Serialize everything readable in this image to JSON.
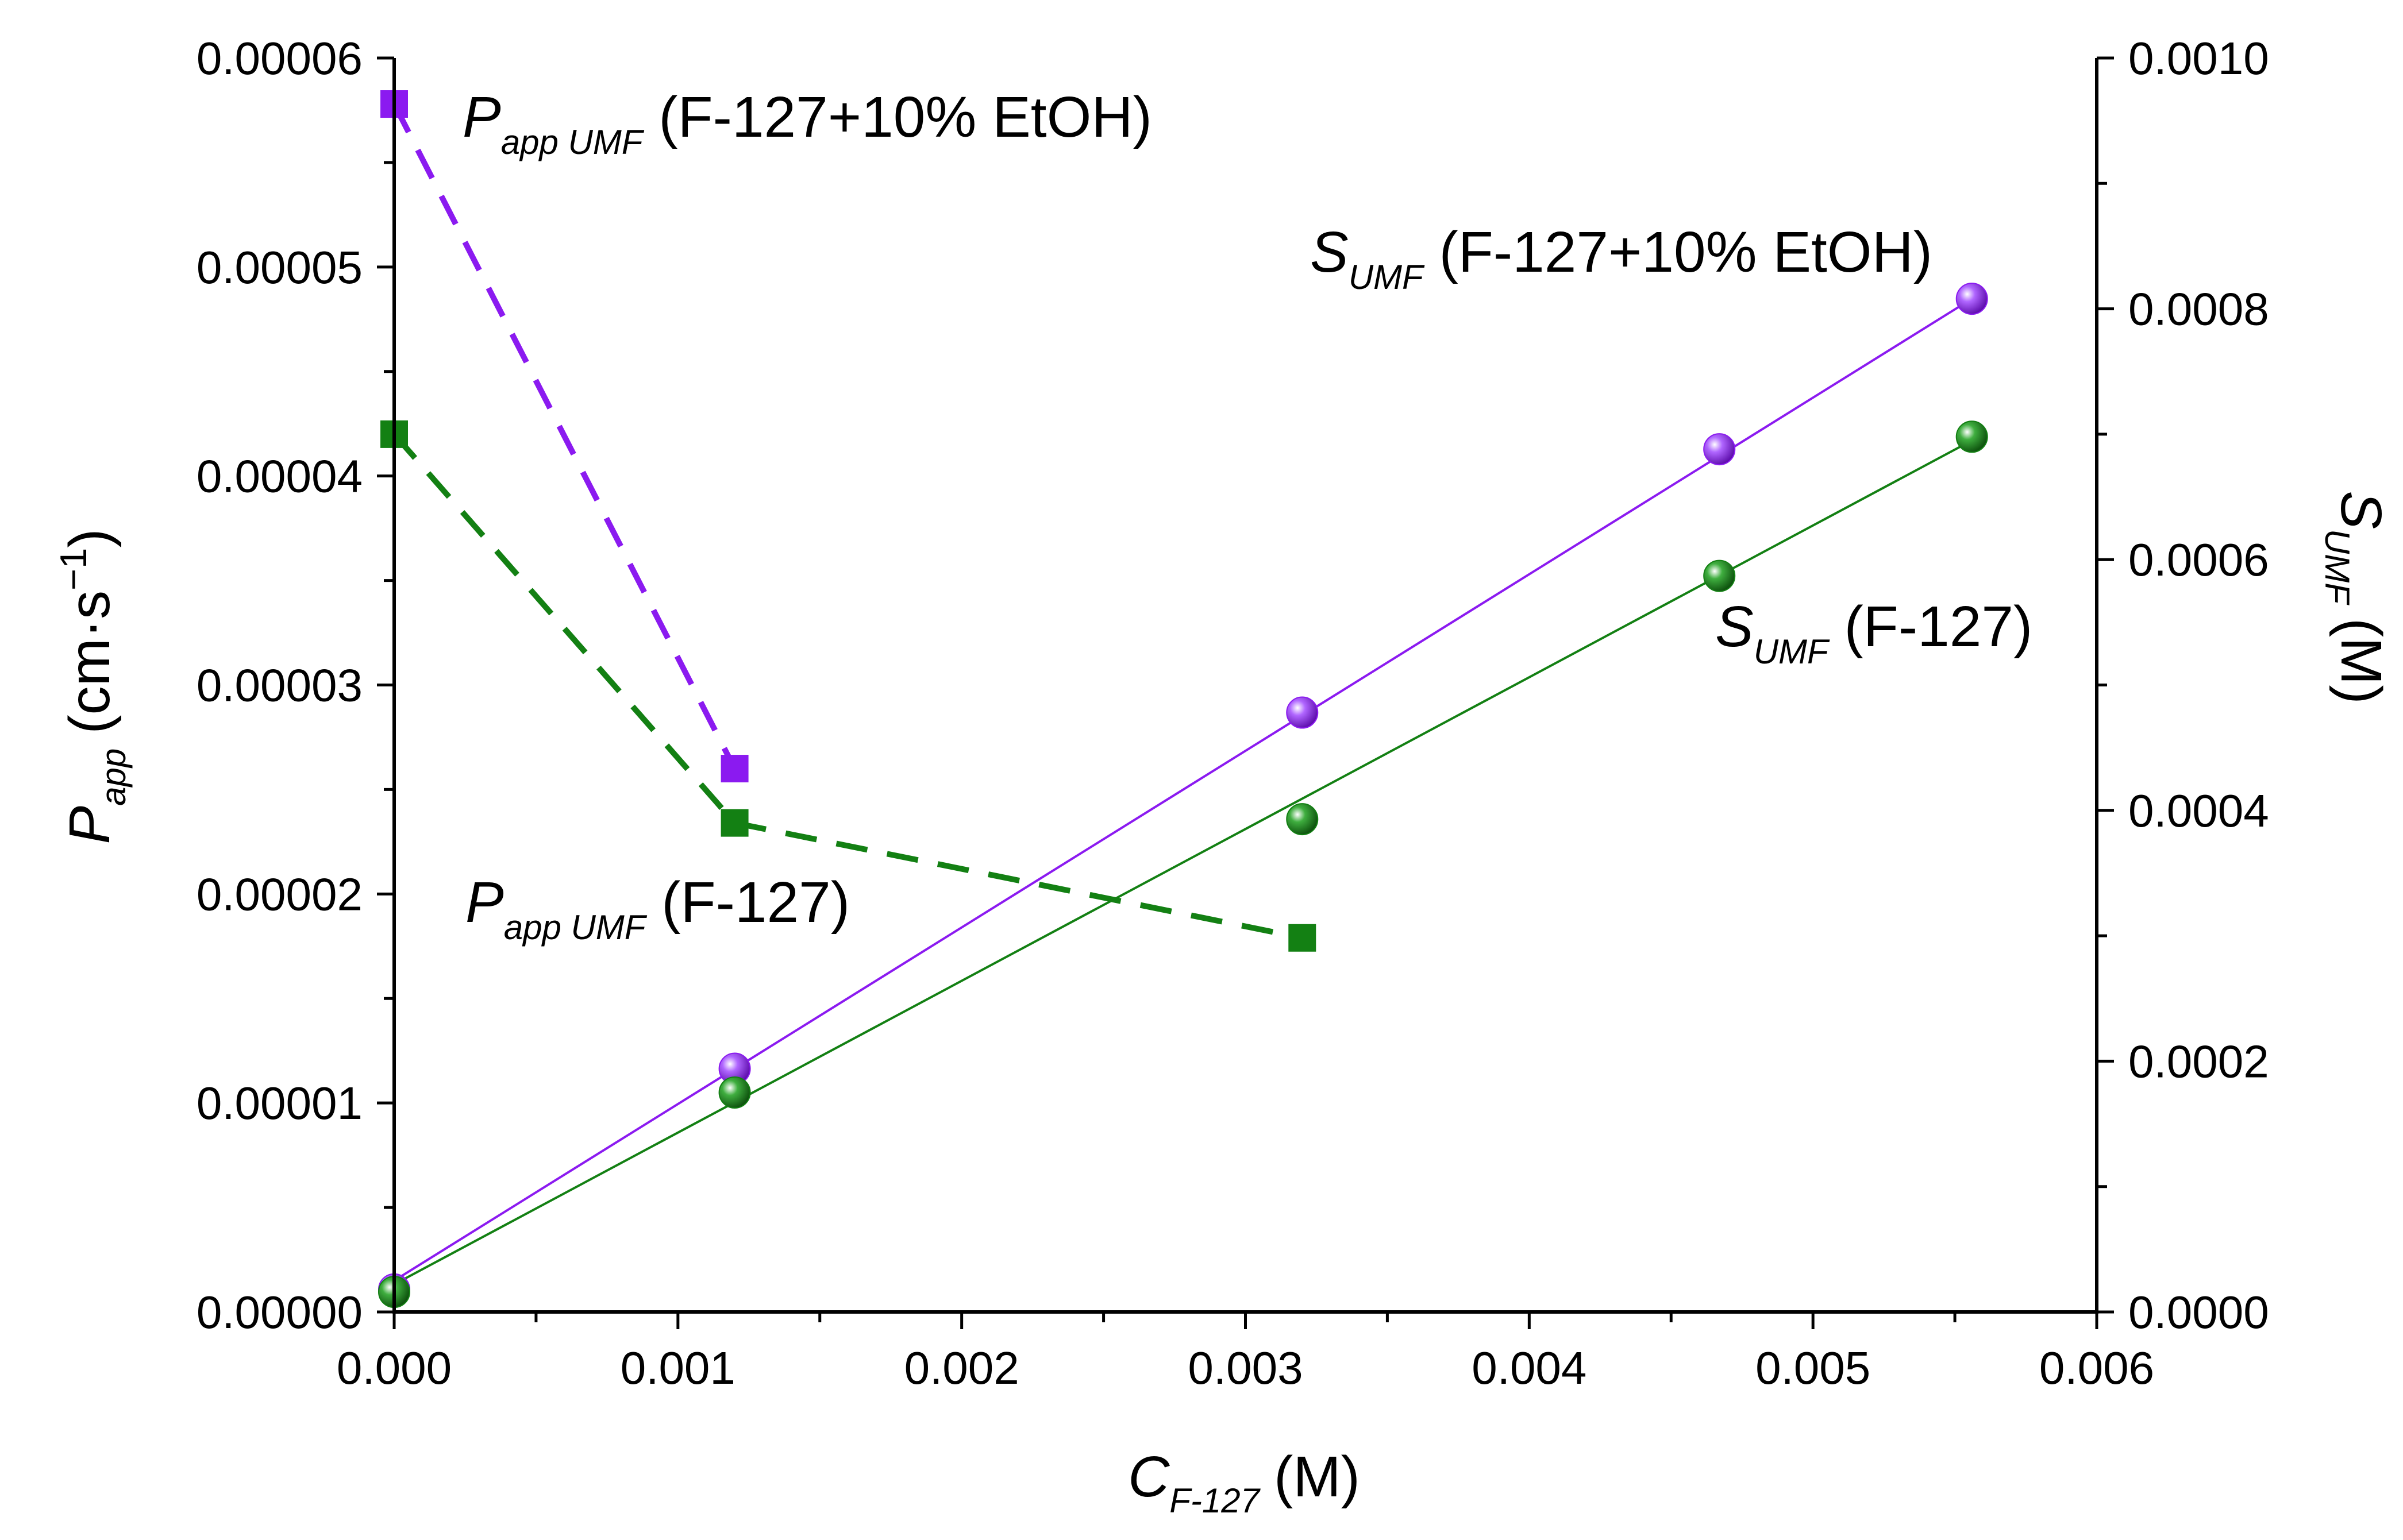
{
  "chart_data": {
    "type": "scatter",
    "x_axis": {
      "label_main": "C",
      "label_sub": "F-127",
      "label_unit": "(M)",
      "range": [
        0,
        0.006
      ],
      "ticks": [
        0.0,
        0.001,
        0.002,
        0.003,
        0.004,
        0.005,
        0.006
      ],
      "tick_labels": [
        "0.000",
        "0.001",
        "0.002",
        "0.003",
        "0.004",
        "0.005",
        "0.006"
      ]
    },
    "y_left": {
      "label_main": "P",
      "label_sub": "app",
      "label_unit_pre": "(cm·s",
      "label_unit_sup": "−1",
      "label_unit_post": ")",
      "range": [
        0,
        6e-05
      ],
      "ticks": [
        0,
        1e-05,
        2e-05,
        3e-05,
        4e-05,
        5e-05,
        6e-05
      ],
      "tick_labels": [
        "0.00000",
        "0.00001",
        "0.00002",
        "0.00003",
        "0.00004",
        "0.00005",
        "0.00006"
      ]
    },
    "y_right": {
      "label_main": "S",
      "label_sub": "UMF",
      "label_unit": "(M)",
      "range": [
        0,
        0.001
      ],
      "ticks": [
        0,
        0.0002,
        0.0004,
        0.0006,
        0.0008,
        0.001
      ],
      "tick_labels": [
        "0.0000",
        "0.0002",
        "0.0004",
        "0.0006",
        "0.0008",
        "0.0010"
      ]
    },
    "series": [
      {
        "name": "P_app UMF (F-127+10% EtOH)",
        "axis": "left",
        "marker": "square",
        "line": "dashed",
        "color": "#8B1AF0",
        "x": [
          0.0,
          0.0012
        ],
        "y": [
          5.78e-05,
          2.6e-05
        ]
      },
      {
        "name": "P_app UMF (F-127)",
        "axis": "left",
        "marker": "square",
        "line": "dashed",
        "color": "#138013",
        "x": [
          0.0,
          0.0012,
          0.0032
        ],
        "y": [
          4.2e-05,
          2.34e-05,
          1.79e-05
        ]
      },
      {
        "name": "S_UMF (F-127+10% EtOH)",
        "axis": "right",
        "marker": "sphere",
        "line": "linear-fit",
        "color": "#8B1AF0",
        "x": [
          0.0,
          0.0012,
          0.0032,
          0.00467,
          0.00556
        ],
        "y": [
          1.8e-05,
          0.000194,
          0.000478,
          0.000688,
          0.000808
        ],
        "fit": [
          [
            0.0,
            2.5e-05
          ],
          [
            0.00556,
            0.000808
          ]
        ]
      },
      {
        "name": "S_UMF (F-127)",
        "axis": "right",
        "marker": "sphere",
        "line": "linear-fit",
        "color": "#138013",
        "x": [
          0.0,
          0.0012,
          0.0032,
          0.00467,
          0.00556
        ],
        "y": [
          1.6e-05,
          0.000175,
          0.000393,
          0.000587,
          0.000698
        ],
        "fit": [
          [
            0.0,
            2.2e-05
          ],
          [
            0.00556,
            0.000695
          ]
        ]
      }
    ],
    "annotations": [
      {
        "main": "P",
        "sub": "app UMF",
        "rest": " (F-127+10% EtOH)",
        "series": 0
      },
      {
        "main": "S",
        "sub": "UMF",
        "rest": " (F-127+10% EtOH)",
        "series": 2
      },
      {
        "main": "S",
        "sub": "UMF",
        "rest": " (F-127)",
        "series": 3
      },
      {
        "main": "P",
        "sub": "app UMF",
        "rest": " (F-127)",
        "series": 1
      }
    ],
    "colors": {
      "purple": "#8B1AF0",
      "green": "#138013",
      "axis": "#000000"
    }
  }
}
